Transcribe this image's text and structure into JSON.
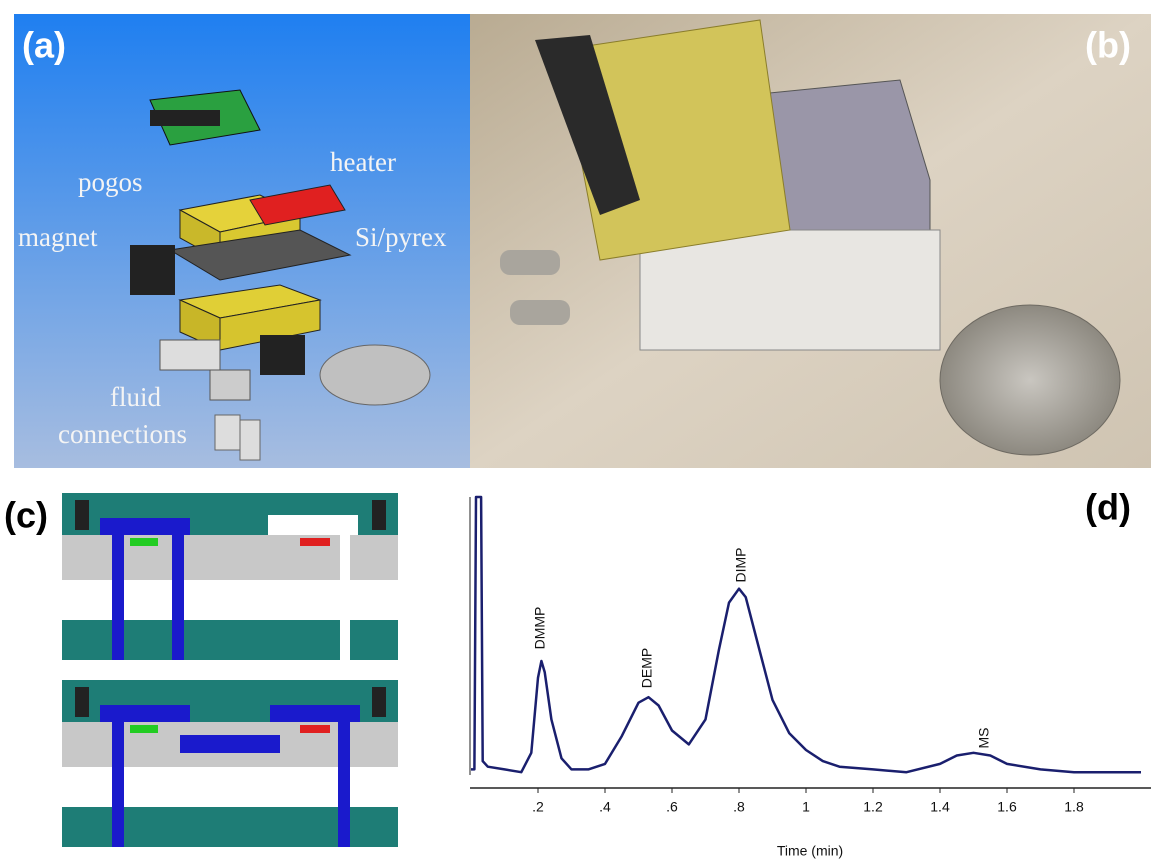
{
  "panel_labels": [
    "(a)",
    "(b)",
    "(c)",
    "(d)"
  ],
  "panel_a": {
    "labels": [
      "pogos",
      "heater",
      "magnet",
      "Si/pyrex",
      "fluid",
      "connections"
    ]
  },
  "chart_data": {
    "type": "line",
    "x_label": "Time (min)",
    "xlim": [
      0,
      2
    ],
    "xticks": [
      {
        "value": 0.2,
        "label": ".2"
      },
      {
        "value": 0.4,
        "label": ".4"
      },
      {
        "value": 0.6,
        "label": ".6"
      },
      {
        "value": 0.8,
        "label": ".8"
      },
      1,
      1.2,
      1.4,
      1.6,
      1.8
    ],
    "ylim": [
      0,
      100
    ],
    "series": [
      {
        "color": "#1a1f6e",
        "x": [
          0,
          0.01,
          0.015,
          0.03,
          0.035,
          0.05,
          0.1,
          0.15,
          0.18,
          0.2,
          0.21,
          0.22,
          0.24,
          0.27,
          0.3,
          0.35,
          0.4,
          0.45,
          0.5,
          0.53,
          0.56,
          0.6,
          0.65,
          0.7,
          0.74,
          0.77,
          0.8,
          0.82,
          0.85,
          0.9,
          0.95,
          1.0,
          1.05,
          1.1,
          1.2,
          1.3,
          1.4,
          1.45,
          1.5,
          1.55,
          1.6,
          1.7,
          1.8,
          1.9,
          2.0
        ],
        "values": [
          2,
          2,
          100,
          100,
          5,
          3,
          2,
          1,
          8,
          35,
          41,
          37,
          20,
          6,
          2,
          2,
          4,
          14,
          26,
          28,
          25,
          16,
          11,
          20,
          45,
          62,
          67,
          64,
          50,
          27,
          15,
          9,
          5,
          3,
          2,
          1,
          4,
          7,
          8,
          7,
          4,
          2,
          1,
          1,
          1
        ]
      }
    ],
    "annotations": [
      "DMMP",
      "DEMP",
      "DIMP",
      "MS"
    ]
  }
}
